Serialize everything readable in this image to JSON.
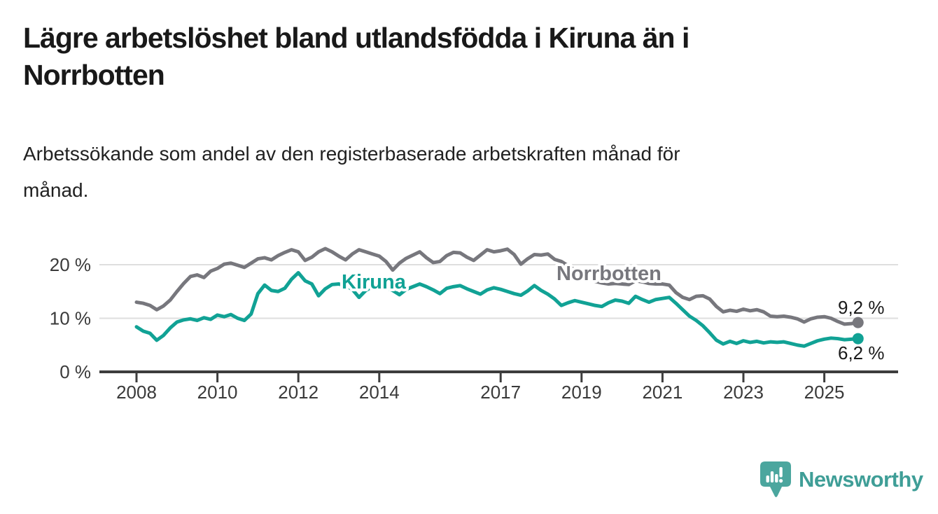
{
  "header": {
    "title": "Lägre arbetslöshet bland utlandsfödda i Kiruna än i\nNorrbotten",
    "subtitle": "Arbetssökande som andel av den registerbaserade arbetskraften månad för\nmånad."
  },
  "footer": {
    "brand": "Newsworthy"
  },
  "chart_data": {
    "type": "line",
    "unit": "%",
    "grid": "horizontal-only",
    "legend_position": "inline-labels-on-lines",
    "x_axis": {
      "start": 2008,
      "step_years": 0.1666667,
      "end": 2025.83
    },
    "ylim": [
      0,
      25
    ],
    "x_ticks": [
      {
        "value": 2008,
        "label": "2008"
      },
      {
        "value": 2010,
        "label": "2010"
      },
      {
        "value": 2012,
        "label": "2012"
      },
      {
        "value": 2014,
        "label": "2014"
      },
      {
        "value": 2017,
        "label": "2017"
      },
      {
        "value": 2019,
        "label": "2019"
      },
      {
        "value": 2021,
        "label": "2021"
      },
      {
        "value": 2023,
        "label": "2023"
      },
      {
        "value": 2025,
        "label": "2025"
      }
    ],
    "y_ticks": [
      {
        "value": 0,
        "label": "0 %"
      },
      {
        "value": 10,
        "label": "10 %"
      },
      {
        "value": 20,
        "label": "20 %"
      }
    ],
    "series": [
      {
        "name": "Norrbotten",
        "color": "#77777D",
        "end_label": "9,2 %",
        "end_value": 9.2,
        "values": [
          13.0,
          12.8,
          12.4,
          11.6,
          12.3,
          13.4,
          15.0,
          16.5,
          17.8,
          18.1,
          17.6,
          18.8,
          19.3,
          20.1,
          20.3,
          19.9,
          19.5,
          20.3,
          21.1,
          21.3,
          20.9,
          21.7,
          22.3,
          22.8,
          22.4,
          20.8,
          21.4,
          22.4,
          23.0,
          22.4,
          21.6,
          20.9,
          22.0,
          22.8,
          22.4,
          22.0,
          21.6,
          20.6,
          19.0,
          20.3,
          21.2,
          21.8,
          22.4,
          21.3,
          20.4,
          20.6,
          21.7,
          22.3,
          22.2,
          21.4,
          20.8,
          21.8,
          22.8,
          22.4,
          22.6,
          22.9,
          21.9,
          20.1,
          21.1,
          21.9,
          21.8,
          22.0,
          21.0,
          20.6,
          19.8,
          19.0,
          18.2,
          17.5,
          16.9,
          16.6,
          16.4,
          16.5,
          16.4,
          16.3,
          17.0,
          16.8,
          16.5,
          16.4,
          16.4,
          16.2,
          14.8,
          13.9,
          13.5,
          14.1,
          14.2,
          13.6,
          12.2,
          11.2,
          11.5,
          11.3,
          11.7,
          11.4,
          11.6,
          11.2,
          10.4,
          10.3,
          10.4,
          10.2,
          9.9,
          9.3,
          9.9,
          10.2,
          10.3,
          10.0,
          9.4,
          8.9,
          9.0,
          9.2
        ]
      },
      {
        "name": "Kiruna",
        "color": "#11A295",
        "end_label": "6,2 %",
        "end_value": 6.2,
        "values": [
          8.4,
          7.6,
          7.2,
          5.9,
          6.8,
          8.2,
          9.3,
          9.7,
          9.9,
          9.6,
          10.1,
          9.8,
          10.6,
          10.3,
          10.7,
          10.0,
          9.6,
          10.8,
          14.6,
          16.2,
          15.2,
          15.0,
          15.6,
          17.3,
          18.5,
          17.0,
          16.4,
          14.2,
          15.5,
          16.3,
          16.4,
          16.1,
          15.4,
          13.9,
          15.2,
          15.9,
          16.2,
          15.7,
          15.2,
          14.4,
          15.4,
          15.9,
          16.4,
          15.9,
          15.3,
          14.6,
          15.6,
          15.9,
          16.1,
          15.5,
          15.0,
          14.5,
          15.3,
          15.7,
          15.4,
          15.0,
          14.6,
          14.3,
          15.1,
          16.1,
          15.2,
          14.5,
          13.6,
          12.4,
          12.9,
          13.3,
          13.0,
          12.7,
          12.4,
          12.2,
          12.9,
          13.4,
          13.2,
          12.8,
          14.1,
          13.5,
          13.0,
          13.5,
          13.7,
          13.9,
          12.8,
          11.6,
          10.4,
          9.6,
          8.6,
          7.3,
          5.9,
          5.2,
          5.7,
          5.3,
          5.8,
          5.5,
          5.7,
          5.4,
          5.6,
          5.5,
          5.6,
          5.3,
          5.0,
          4.8,
          5.3,
          5.8,
          6.1,
          6.3,
          6.2,
          6.0,
          6.1,
          6.2
        ]
      }
    ]
  }
}
